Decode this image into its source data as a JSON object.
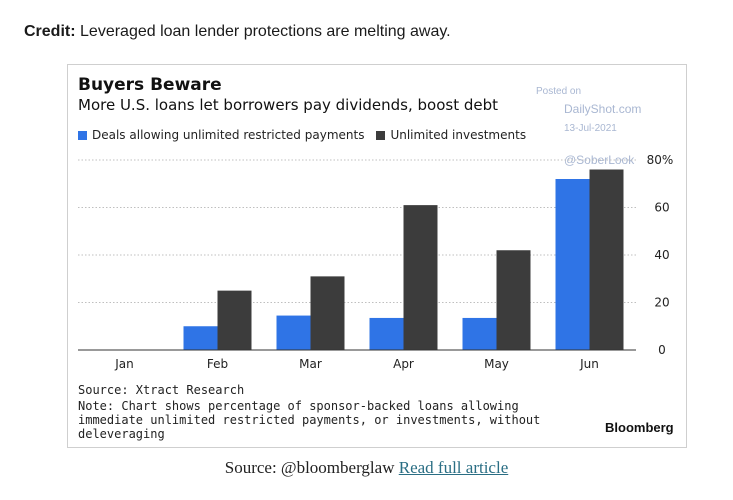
{
  "credit": {
    "label": "Credit:",
    "text": "Leveraged loan lender protections are melting away."
  },
  "watermark": {
    "posted": "Posted on",
    "site": "DailyShot.com",
    "date": "13-Jul-2021",
    "handle": "@SoberLook"
  },
  "chart_data": {
    "type": "bar",
    "title": "Buyers Beware",
    "subtitle": "More U.S. loans let borrowers pay dividends, boost debt",
    "categories": [
      "Jan",
      "Feb",
      "Mar",
      "Apr",
      "May",
      "Jun"
    ],
    "series": [
      {
        "name": "Deals allowing unlimited restricted payments",
        "color": "#2f74e6",
        "values": [
          0,
          10,
          14.5,
          13.5,
          13.5,
          72
        ]
      },
      {
        "name": "Unlimited investments",
        "color": "#3c3c3c",
        "values": [
          0,
          25,
          31,
          61,
          42,
          76
        ]
      }
    ],
    "ylim": [
      0,
      80
    ],
    "yticks": [
      0,
      20,
      40,
      60
    ],
    "top_tick_label": "80%",
    "y_axis_side": "right",
    "grid": true,
    "legend": "top-left",
    "source": "Source: Xtract Research",
    "note": "Note: Chart shows percentage of sponsor-backed loans allowing immediate unlimited restricted payments, or investments, without deleveraging",
    "brand": "Bloomberg"
  },
  "footer": {
    "prefix": "Source: @bloomberglaw",
    "link": "Read full article"
  }
}
